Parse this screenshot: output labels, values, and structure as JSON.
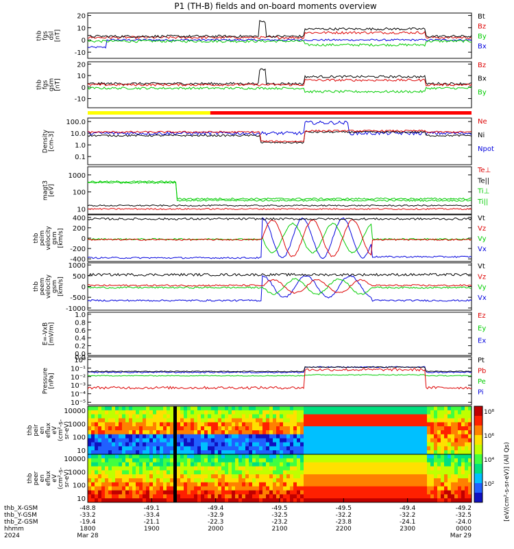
{
  "chart_data": {
    "type": "line",
    "title": "P1 (TH-B) fields and on-board moments overview",
    "panels": [
      {
        "id": "fgs_dsl",
        "ylabel": [
          "thb",
          "fgs",
          "dsl",
          "[nT]"
        ],
        "ylim": [
          -15,
          22
        ],
        "ticks": [
          "20",
          "10",
          "0",
          "-10"
        ],
        "tick_values": [
          20,
          10,
          0,
          -10
        ],
        "legend": [
          {
            "label": "Bt",
            "color": "#000000"
          },
          {
            "label": "Bz",
            "color": "#dd0000"
          },
          {
            "label": "By",
            "color": "#00cc00"
          },
          {
            "label": "Bx",
            "color": "#0000dd"
          }
        ]
      },
      {
        "id": "fgs_gsm",
        "ylabel": [
          "thb",
          "fgs",
          "gsm",
          "[nT]"
        ],
        "ylim": [
          -18,
          22
        ],
        "ticks": [
          "20",
          "10",
          "0",
          "-10"
        ],
        "tick_values": [
          20,
          10,
          0,
          -10
        ],
        "legend": [
          {
            "label": "Bz",
            "color": "#dd0000"
          },
          {
            "label": "Bx",
            "color": "#000000"
          },
          {
            "label": "By",
            "color": "#00cc00"
          }
        ]
      },
      {
        "id": "density",
        "ylabel": [
          "Density",
          "[cm-3]"
        ],
        "ylim": [
          0.02,
          200
        ],
        "log": true,
        "ticks": [
          "100.0",
          "10.0",
          "1.0",
          "0.1"
        ],
        "tick_values": [
          100,
          10,
          1,
          0.1
        ],
        "legend": [
          {
            "label": "Ne",
            "color": "#dd0000"
          },
          {
            "label": "Ni",
            "color": "#000000"
          },
          {
            "label": "Npot",
            "color": "#0000dd"
          }
        ]
      },
      {
        "id": "temperature",
        "ylabel": [
          "magt3",
          "[eV]"
        ],
        "ylim": [
          5,
          3000
        ],
        "log": true,
        "ticks": [
          "1000",
          "100",
          "10"
        ],
        "tick_values": [
          1000,
          100,
          10
        ],
        "legend": [
          {
            "label": "Te⊥",
            "color": "#dd0000"
          },
          {
            "label": "Te||",
            "color": "#000000"
          },
          {
            "label": "Ti⊥",
            "color": "#00cc00"
          },
          {
            "label": "Ti||",
            "color": "#00cc00"
          }
        ]
      },
      {
        "id": "peim_velocity",
        "ylabel": [
          "thb",
          "peim",
          "velocity",
          "gsm",
          "[km/s]"
        ],
        "ylim": [
          -450,
          450
        ],
        "ticks": [
          "400",
          "200",
          "0",
          "-200",
          "-400"
        ],
        "tick_values": [
          400,
          200,
          0,
          -200,
          -400
        ],
        "legend": [
          {
            "label": "Vt",
            "color": "#000000"
          },
          {
            "label": "Vz",
            "color": "#dd0000"
          },
          {
            "label": "Vy",
            "color": "#00cc00"
          },
          {
            "label": "Vx",
            "color": "#0000dd"
          }
        ]
      },
      {
        "id": "peem_velocity",
        "ylabel": [
          "thb",
          "peem",
          "velocity",
          "gsm",
          "[km/s]"
        ],
        "ylim": [
          -1100,
          1100
        ],
        "ticks": [
          "1000",
          "500",
          "0",
          "-500",
          "-1000"
        ],
        "tick_values": [
          1000,
          500,
          0,
          -500,
          -1000
        ],
        "legend": [
          {
            "label": "Vt",
            "color": "#000000"
          },
          {
            "label": "Vz",
            "color": "#dd0000"
          },
          {
            "label": "Vy",
            "color": "#00cc00"
          },
          {
            "label": "Vx",
            "color": "#0000dd"
          }
        ]
      },
      {
        "id": "efield",
        "ylabel": [
          "E=-VxB",
          "[mV/m]"
        ],
        "ylim": [
          -0.05,
          1.05
        ],
        "ticks": [
          "1.0",
          "0.8",
          "0.6",
          "0.4",
          "0.2",
          "0.0"
        ],
        "tick_values": [
          1.0,
          0.8,
          0.6,
          0.4,
          0.2,
          0.0
        ],
        "legend": [
          {
            "label": "Ez",
            "color": "#dd0000"
          },
          {
            "label": "Ey",
            "color": "#00cc00"
          },
          {
            "label": "Ex",
            "color": "#0000dd"
          }
        ]
      },
      {
        "id": "pressure",
        "ylabel": [
          "Pressure",
          "[nPa]"
        ],
        "ylim": [
          5e-06,
          2
        ],
        "log": true,
        "ticks": [
          "10⁰",
          "10⁻¹",
          "10⁻²",
          "10⁻³",
          "10⁻⁴",
          "10⁻⁵"
        ],
        "tick_values": [
          1,
          0.1,
          0.01,
          0.001,
          0.0001,
          1e-05
        ],
        "top_tick": "0.0",
        "legend": [
          {
            "label": "Pt",
            "color": "#000000"
          },
          {
            "label": "Pb",
            "color": "#dd0000"
          },
          {
            "label": "Pe",
            "color": "#00cc00"
          },
          {
            "label": "Pi",
            "color": "#0000dd"
          }
        ]
      },
      {
        "id": "peir_spec",
        "type": "heatmap",
        "ylabel": [
          "thb",
          "peir",
          "en",
          "eflux",
          "eV",
          "(cm²-s-",
          "sr-eV)"
        ],
        "ylim": [
          5,
          20000
        ],
        "log": true,
        "ticks": [
          "10000",
          "1000",
          "100",
          "10"
        ],
        "tick_values": [
          10000,
          1000,
          100,
          10
        ]
      },
      {
        "id": "peer_spec",
        "type": "heatmap",
        "ylabel": [
          "thb",
          "peer",
          "en",
          "eflux",
          "eV",
          "(cm²-s-",
          "sr-eV)"
        ],
        "ylim": [
          5,
          20000
        ],
        "log": true,
        "ticks": [
          "10000",
          "1000",
          "100",
          "10"
        ],
        "tick_values": [
          10000,
          1000,
          100,
          10
        ]
      }
    ],
    "colorbar": {
      "label": "[eV/(cm²-s-sr-eV)] (All Qs)",
      "ticks": [
        "10⁸",
        "10⁶",
        "10⁴",
        "10²"
      ]
    },
    "x_axis": {
      "rows": [
        {
          "label": "thb_X-GSM",
          "values": [
            "-48.8",
            "-49.1",
            "-49.4",
            "-49.5",
            "-49.5",
            "-49.4",
            "-49.2"
          ]
        },
        {
          "label": "thb_Y-GSM",
          "values": [
            "-33.2",
            "-33.4",
            "-32.9",
            "-32.5",
            "-32.2",
            "-32.2",
            "-32.5"
          ]
        },
        {
          "label": "thb_Z-GSM",
          "values": [
            "-19.4",
            "-21.1",
            "-22.3",
            "-23.2",
            "-23.8",
            "-24.1",
            "-24.0"
          ]
        },
        {
          "label": "hhmm",
          "values": [
            "1800",
            "1900",
            "2000",
            "2100",
            "2200",
            "2300",
            "0000"
          ]
        },
        {
          "label": "2024",
          "values": [
            "Mar 28",
            "",
            "",
            "",
            "",
            "",
            "Mar 29"
          ]
        }
      ]
    },
    "mode_bar": {
      "yellow_until_hhmm": "1915",
      "red_after_hhmm": "1915"
    }
  }
}
